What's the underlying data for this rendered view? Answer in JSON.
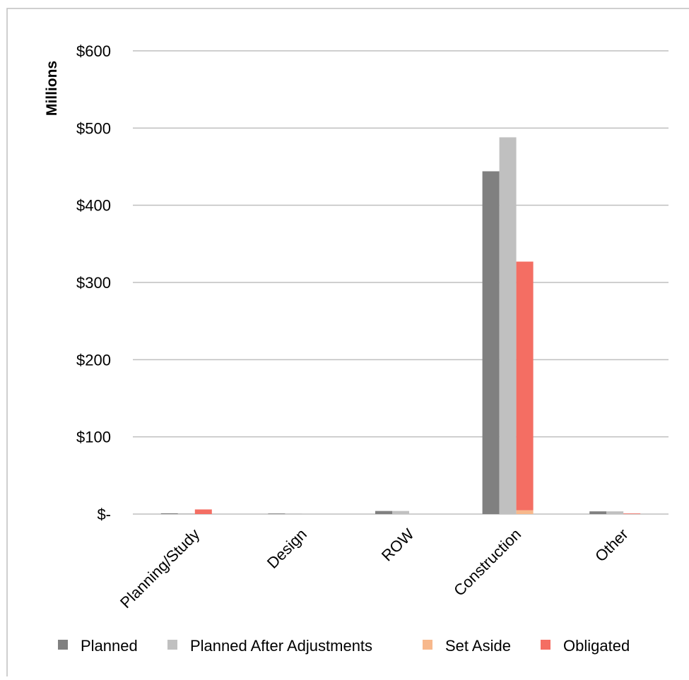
{
  "chart_data": {
    "type": "bar",
    "title": "",
    "xlabel": "",
    "ylabel": "Millions",
    "ylim": [
      0,
      600
    ],
    "yticks": [
      0,
      100,
      200,
      300,
      400,
      500,
      600
    ],
    "ytick_labels": [
      "$-",
      "$100",
      "$200",
      "$300",
      "$400",
      "$500",
      "$600"
    ],
    "categories": [
      "Planning/Study",
      "Design",
      "ROW",
      "Construction",
      "Other"
    ],
    "grid": true,
    "legend_position": "bottom",
    "series": [
      {
        "name": "Planned",
        "color": "#808080",
        "values": [
          1,
          0.5,
          4,
          444,
          3.5
        ]
      },
      {
        "name": "Planned After Adjustments",
        "color": "#c0c0c0",
        "values": [
          1,
          0.5,
          4,
          488,
          3.5
        ]
      },
      {
        "name": "Set Aside",
        "color": "#f7b88c",
        "values": [
          0,
          0,
          0,
          5,
          0
        ]
      },
      {
        "name": "Obligated",
        "color": "#f46e63",
        "values": [
          6,
          0,
          0,
          322,
          0.5
        ]
      }
    ]
  }
}
